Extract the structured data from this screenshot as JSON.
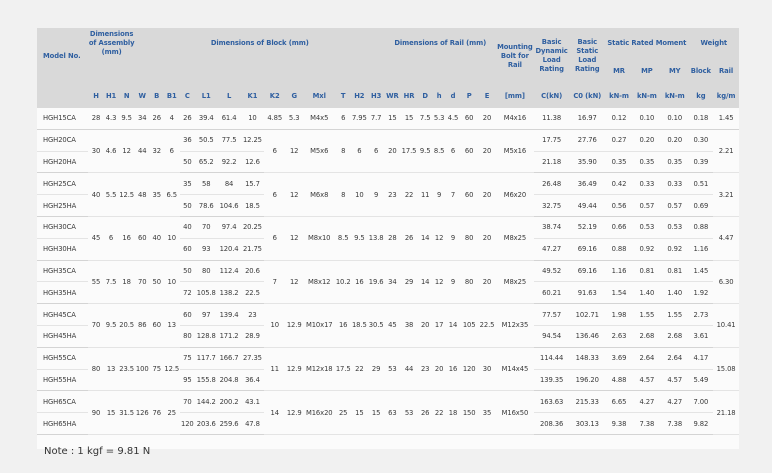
{
  "header": {
    "model": "Model No.",
    "assembly": "Dimensions of Assembly (mm)",
    "block": "Dimensions of Block (mm)",
    "rail": "Dimensions of Rail (mm)",
    "bolt": "Mounting Bolt for Rail",
    "dyn": "Basic Dynamic Load Rating",
    "stat": "Basic Static Load Rating",
    "moment": "Static Rated Moment",
    "weight": "Weight",
    "cols": [
      "H",
      "H1",
      "N",
      "W",
      "B",
      "B1",
      "C",
      "L1",
      "L",
      "K1",
      "K2",
      "G",
      "Mxl",
      "T",
      "H2",
      "H3",
      "WR",
      "HR",
      "D",
      "h",
      "d",
      "P",
      "E",
      "[mm]",
      "C(kN)",
      "C0 (kN)",
      "MR",
      "MP",
      "MY",
      "Block",
      "Rail"
    ],
    "units": [
      "kN-m",
      "kN-m",
      "kN-m",
      "kg",
      "kg/m"
    ]
  },
  "rows": [
    [
      "HGH15CA",
      "28",
      "4.3",
      "9.5",
      "34",
      "26",
      "4",
      "26",
      "39.4",
      "61.4",
      "10",
      "4.85",
      "5.3",
      "M4x5",
      "6",
      "7.95",
      "7.7",
      "15",
      "15",
      "7.5",
      "5.3",
      "4.5",
      "60",
      "20",
      "M4x16",
      "11.38",
      "16.97",
      "0.12",
      "0.10",
      "0.10",
      "0.18",
      "1.45"
    ],
    [
      "HGH20CA",
      "30",
      "4.6",
      "12",
      "44",
      "32",
      "6",
      "36",
      "50.5",
      "77.5",
      "12.25",
      "6",
      "12",
      "M5x6",
      "8",
      "6",
      "6",
      "20",
      "17.5",
      "9.5",
      "8.5",
      "6",
      "60",
      "20",
      "M5x16",
      "17.75",
      "27.76",
      "0.27",
      "0.20",
      "0.20",
      "0.30",
      "2.21"
    ],
    [
      "HGH20HA",
      "",
      "",
      "",
      "",
      "",
      "",
      "50",
      "65.2",
      "92.2",
      "12.6",
      "",
      "",
      "",
      "",
      "",
      "",
      "",
      "",
      "",
      "",
      "",
      "",
      "",
      "",
      "21.18",
      "35.90",
      "0.35",
      "0.35",
      "0.35",
      "0.39",
      ""
    ],
    [
      "HGH25CA",
      "40",
      "5.5",
      "12.5",
      "48",
      "35",
      "6.5",
      "35",
      "58",
      "84",
      "15.7",
      "6",
      "12",
      "M6x8",
      "8",
      "10",
      "9",
      "23",
      "22",
      "11",
      "9",
      "7",
      "60",
      "20",
      "M6x20",
      "26.48",
      "36.49",
      "0.42",
      "0.33",
      "0.33",
      "0.51",
      "3.21"
    ],
    [
      "HGH25HA",
      "",
      "",
      "",
      "",
      "",
      "",
      "50",
      "78.6",
      "104.6",
      "18.5",
      "",
      "",
      "",
      "",
      "",
      "",
      "",
      "",
      "",
      "",
      "",
      "",
      "",
      "",
      "32.75",
      "49.44",
      "0.56",
      "0.57",
      "0.57",
      "0.69",
      ""
    ],
    [
      "HGH30CA",
      "45",
      "6",
      "16",
      "60",
      "40",
      "10",
      "40",
      "70",
      "97.4",
      "20.25",
      "6",
      "12",
      "M8x10",
      "8.5",
      "9.5",
      "13.8",
      "28",
      "26",
      "14",
      "12",
      "9",
      "80",
      "20",
      "M8x25",
      "38.74",
      "52.19",
      "0.66",
      "0.53",
      "0.53",
      "0.88",
      "4.47"
    ],
    [
      "HGH30HA",
      "",
      "",
      "",
      "",
      "",
      "",
      "60",
      "93",
      "120.4",
      "21.75",
      "",
      "",
      "",
      "",
      "",
      "",
      "",
      "",
      "",
      "",
      "",
      "",
      "",
      "",
      "47.27",
      "69.16",
      "0.88",
      "0.92",
      "0.92",
      "1.16",
      ""
    ],
    [
      "HGH35CA",
      "55",
      "7.5",
      "18",
      "70",
      "50",
      "10",
      "50",
      "80",
      "112.4",
      "20.6",
      "7",
      "12",
      "M8x12",
      "10.2",
      "16",
      "19.6",
      "34",
      "29",
      "14",
      "12",
      "9",
      "80",
      "20",
      "M8x25",
      "49.52",
      "69.16",
      "1.16",
      "0.81",
      "0.81",
      "1.45",
      "6.30"
    ],
    [
      "HGH35HA",
      "",
      "",
      "",
      "",
      "",
      "",
      "72",
      "105.8",
      "138.2",
      "22.5",
      "",
      "",
      "",
      "",
      "",
      "",
      "",
      "",
      "",
      "",
      "",
      "",
      "",
      "",
      "60.21",
      "91.63",
      "1.54",
      "1.40",
      "1.40",
      "1.92",
      ""
    ],
    [
      "HGH45CA",
      "70",
      "9.5",
      "20.5",
      "86",
      "60",
      "13",
      "60",
      "97",
      "139.4",
      "23",
      "10",
      "12.9",
      "M10x17",
      "16",
      "18.5",
      "30.5",
      "45",
      "38",
      "20",
      "17",
      "14",
      "105",
      "22.5",
      "M12x35",
      "77.57",
      "102.71",
      "1.98",
      "1.55",
      "1.55",
      "2.73",
      "10.41"
    ],
    [
      "HGH45HA",
      "",
      "",
      "",
      "",
      "",
      "",
      "80",
      "128.8",
      "171.2",
      "28.9",
      "",
      "",
      "",
      "",
      "",
      "",
      "",
      "",
      "",
      "",
      "",
      "",
      "",
      "",
      "94.54",
      "136.46",
      "2.63",
      "2.68",
      "2.68",
      "3.61",
      ""
    ],
    [
      "HGH55CA",
      "80",
      "13",
      "23.5",
      "100",
      "75",
      "12.5",
      "75",
      "117.7",
      "166.7",
      "27.35",
      "11",
      "12.9",
      "M12x18",
      "17.5",
      "22",
      "29",
      "53",
      "44",
      "23",
      "20",
      "16",
      "120",
      "30",
      "M14x45",
      "114.44",
      "148.33",
      "3.69",
      "2.64",
      "2.64",
      "4.17",
      "15.08"
    ],
    [
      "HGH55HA",
      "",
      "",
      "",
      "",
      "",
      "",
      "95",
      "155.8",
      "204.8",
      "36.4",
      "",
      "",
      "",
      "",
      "",
      "",
      "",
      "",
      "",
      "",
      "",
      "",
      "",
      "",
      "139.35",
      "196.20",
      "4.88",
      "4.57",
      "4.57",
      "5.49",
      ""
    ],
    [
      "HGH65CA",
      "90",
      "15",
      "31.5",
      "126",
      "76",
      "25",
      "70",
      "144.2",
      "200.2",
      "43.1",
      "14",
      "12.9",
      "M16x20",
      "25",
      "15",
      "15",
      "63",
      "53",
      "26",
      "22",
      "18",
      "150",
      "35",
      "M16x50",
      "163.63",
      "215.33",
      "6.65",
      "4.27",
      "4.27",
      "7.00",
      "21.18"
    ],
    [
      "HGH65HA",
      "",
      "",
      "",
      "",
      "",
      "",
      "120",
      "203.6",
      "259.6",
      "47.8",
      "",
      "",
      "",
      "",
      "",
      "",
      "",
      "",
      "",
      "",
      "",
      "",
      "",
      "",
      "208.36",
      "303.13",
      "9.38",
      "7.38",
      "7.38",
      "9.82",
      ""
    ]
  ],
  "note": "Note : 1 kgf = 9.81 N"
}
